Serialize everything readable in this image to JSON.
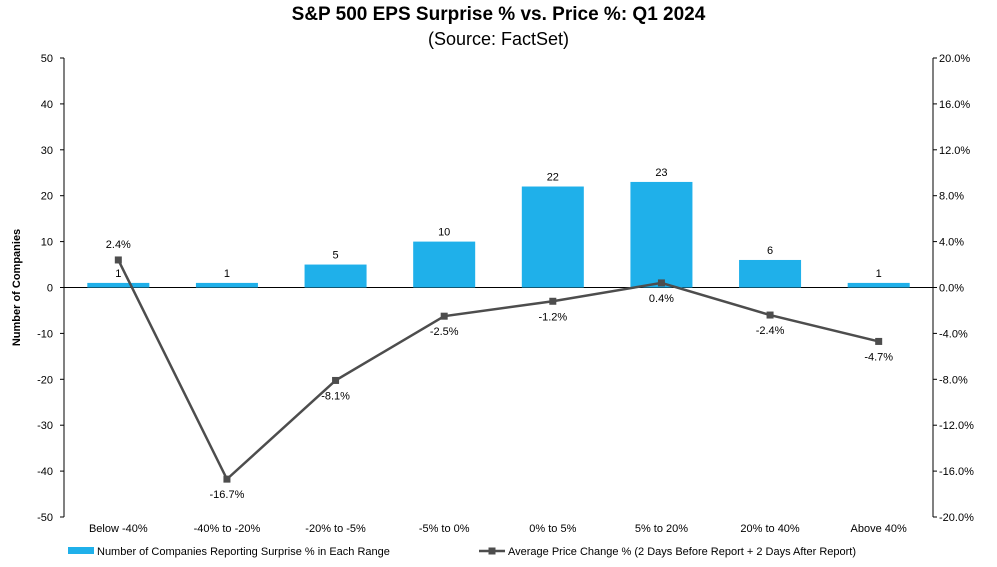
{
  "chart_data": {
    "type": "bar",
    "title": "S&P 500 EPS Surprise % vs. Price %: Q1 2024",
    "subtitle": "(Source: FactSet)",
    "ylabel": "Number of Companies",
    "categories": [
      "Below -40%",
      "-40% to -20%",
      "-20% to -5%",
      "-5% to 0%",
      "0% to 5%",
      "5% to 20%",
      "20% to 40%",
      "Above 40%"
    ],
    "series": [
      {
        "name": "Number of Companies Reporting Surprise % in Each Range",
        "type": "bar",
        "axis": "left",
        "color": "#1fb0ea",
        "values": [
          1,
          1,
          5,
          10,
          22,
          23,
          6,
          1
        ],
        "labels": [
          "1",
          "1",
          "5",
          "10",
          "22",
          "23",
          "6",
          "1"
        ]
      },
      {
        "name": "Average Price Change % (2 Days Before Report + 2 Days After Report)",
        "type": "line",
        "axis": "right",
        "color": "#4d4d4d",
        "values": [
          2.4,
          -16.7,
          -8.1,
          -2.5,
          -1.2,
          0.4,
          -2.4,
          -4.7
        ],
        "labels": [
          "2.4%",
          "-16.7%",
          "-8.1%",
          "-2.5%",
          "-1.2%",
          "0.4%",
          "-2.4%",
          "-4.7%"
        ]
      }
    ],
    "ylim_left": [
      -50,
      50
    ],
    "yticks_left": [
      50,
      40,
      30,
      20,
      10,
      0,
      -10,
      -20,
      -30,
      -40,
      -50
    ],
    "ylim_right": [
      -20,
      20
    ],
    "yticks_right": [
      "20.0%",
      "16.0%",
      "12.0%",
      "8.0%",
      "4.0%",
      "0.0%",
      "-4.0%",
      "-8.0%",
      "-12.0%",
      "-16.0%",
      "-20.0%"
    ],
    "legend_position": "bottom",
    "grid": false
  }
}
